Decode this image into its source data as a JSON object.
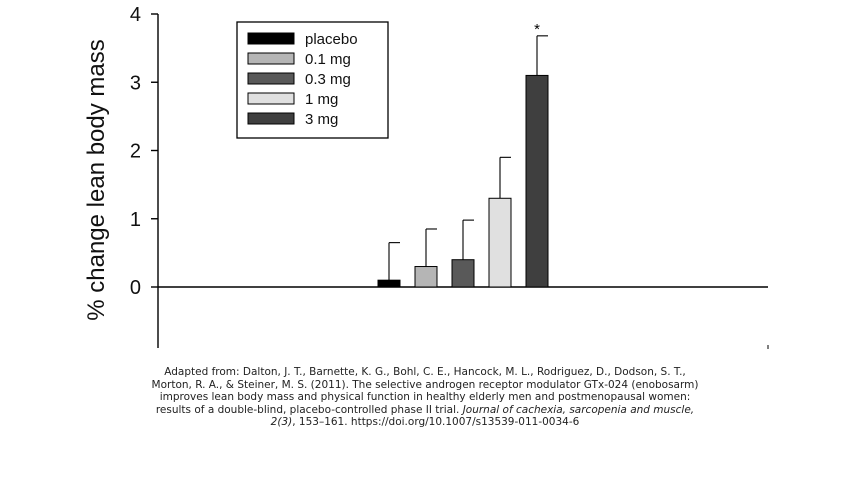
{
  "chart_data": {
    "type": "bar",
    "ylabel": "% change lean body mass",
    "ylim": [
      -0.9,
      4
    ],
    "yticks": [
      0,
      1,
      2,
      3,
      4
    ],
    "grid": false,
    "legend_position": "top-left",
    "series": [
      {
        "name": "placebo",
        "value": 0.1,
        "error": 0.55,
        "color": "#000000"
      },
      {
        "name": "0.1 mg",
        "value": 0.3,
        "error": 0.55,
        "color": "#b5b5b5"
      },
      {
        "name": "0.3 mg",
        "value": 0.4,
        "error": 0.58,
        "color": "#595959"
      },
      {
        "name": "1 mg",
        "value": 1.3,
        "error": 0.6,
        "color": "#e0e0e0"
      },
      {
        "name": "3 mg",
        "value": 3.1,
        "error": 0.58,
        "color": "#3f3f3f",
        "annotation": "*"
      }
    ]
  },
  "caption": {
    "line1": "Adapted from: Dalton, J. T., Barnette, K. G., Bohl, C. E., Hancock, M. L., Rodriguez, D., Dodson, S. T.,",
    "line2": "Morton, R. A., & Steiner, M. S. (2011). The selective androgen receptor modulator GTx-024 (enobosarm)",
    "line3": "improves lean body mass and physical function in healthy elderly men and postmenopausal women:",
    "line4_text": "results of a double-blind, placebo-controlled phase II trial. ",
    "line4_journal": "Journal of cachexia, sarcopenia and muscle,",
    "line5_volume": "2(3)",
    "line5_rest": ", 153–161. https://doi.org/10.1007/s13539-011-0034-6"
  }
}
